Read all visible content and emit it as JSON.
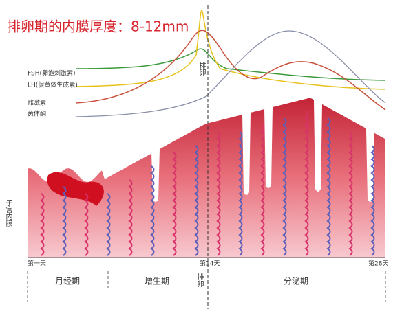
{
  "title": "排卵期的内膜厚度：8-12mm",
  "curve_labels": [
    "FSH(卵泡刺激素)",
    "LH(促黄体生成素)",
    "雌激素",
    "黄体酮"
  ],
  "ovulation_label": "排卵",
  "layer_label": "子宫内膜",
  "days": [
    "第一天",
    "第14天",
    "第28天"
  ],
  "phases": [
    "月经期",
    "增生期",
    "分泌期"
  ]
}
